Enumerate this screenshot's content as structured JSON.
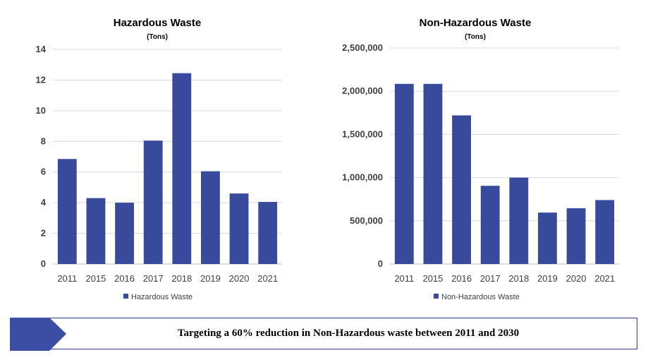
{
  "chart_data": [
    {
      "type": "bar",
      "title": "Hazardous Waste",
      "subtitle": "(Tons)",
      "categories": [
        "2011",
        "2015",
        "2016",
        "2017",
        "2018",
        "2019",
        "2020",
        "2021"
      ],
      "series": [
        {
          "name": "Hazardous Waste",
          "values": [
            6.85,
            4.3,
            4.0,
            8.05,
            12.45,
            6.05,
            4.6,
            4.05
          ],
          "color": "#374a9b"
        }
      ],
      "xlabel": "",
      "ylabel": "",
      "ylim": [
        0,
        14
      ],
      "yticks": [
        0,
        2,
        4,
        6,
        8,
        10,
        12,
        14
      ],
      "ytick_labels": [
        "0",
        "2",
        "4",
        "6",
        "8",
        "10",
        "12",
        "14"
      ],
      "grid": true,
      "legend_position": "bottom"
    },
    {
      "type": "bar",
      "title": "Non-Hazardous Waste",
      "subtitle": "(Tons)",
      "categories": [
        "2011",
        "2015",
        "2016",
        "2017",
        "2018",
        "2019",
        "2020",
        "2021"
      ],
      "series": [
        {
          "name": "Non-Hazardous Waste",
          "values": [
            2085000,
            2085000,
            1720000,
            905000,
            1000000,
            595000,
            645000,
            740000
          ],
          "color": "#374a9b"
        }
      ],
      "xlabel": "",
      "ylabel": "",
      "ylim": [
        0,
        2500000
      ],
      "yticks": [
        0,
        500000,
        1000000,
        1500000,
        2000000,
        2500000
      ],
      "ytick_labels": [
        "0",
        "500,000",
        "1,000,000",
        "1,500,000",
        "2,000,000",
        "2,500,000"
      ],
      "grid": true,
      "legend_position": "bottom"
    }
  ],
  "banner": {
    "text": "Targeting a 60% reduction in Non-Hazardous waste between 2011 and 2030",
    "accent_color": "#3b4ea3"
  }
}
